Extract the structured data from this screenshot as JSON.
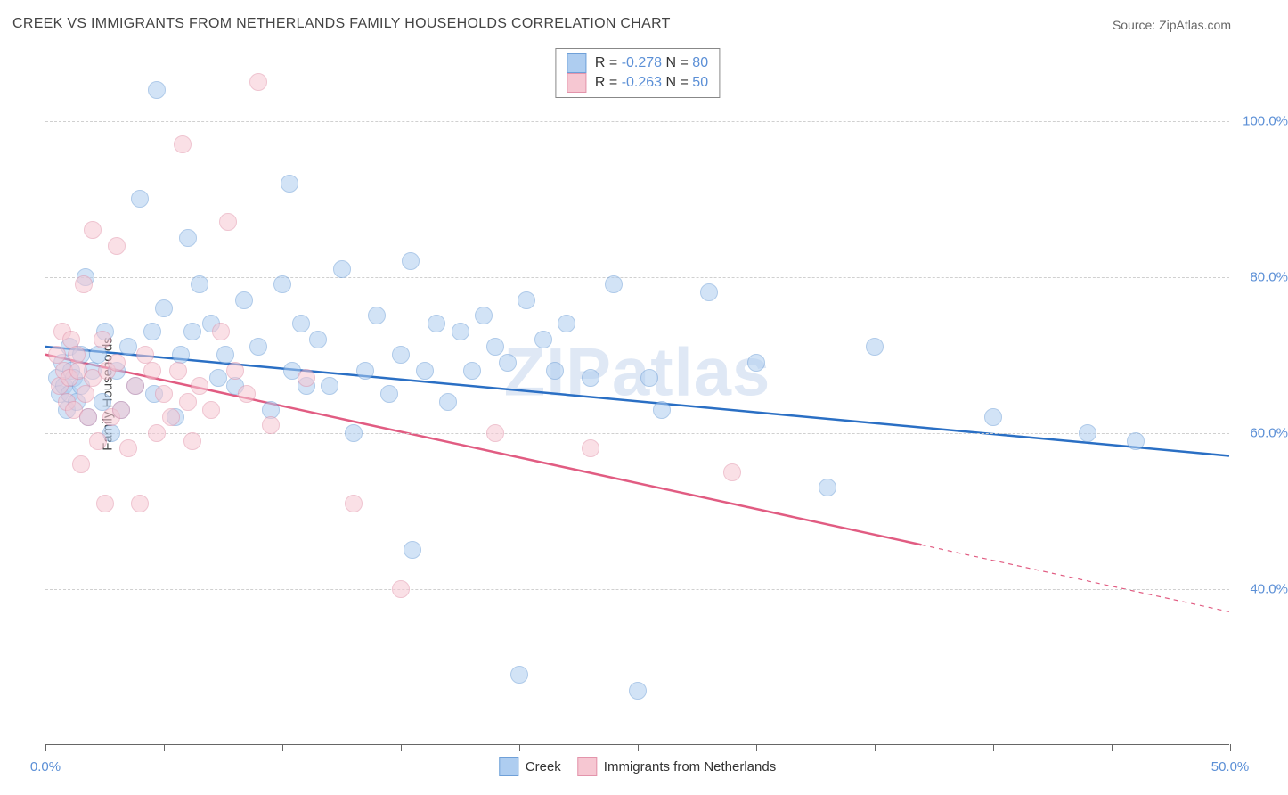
{
  "title": "CREEK VS IMMIGRANTS FROM NETHERLANDS FAMILY HOUSEHOLDS CORRELATION CHART",
  "source_label": "Source: ",
  "source_name": "ZipAtlas.com",
  "ylabel": "Family Households",
  "watermark": "ZIPatlas",
  "chart": {
    "type": "scatter",
    "xlim": [
      0,
      50
    ],
    "ylim": [
      20,
      110
    ],
    "x_ticks": [
      0,
      5,
      10,
      15,
      20,
      25,
      30,
      35,
      40,
      45,
      50
    ],
    "x_tick_labels": {
      "0": "0.0%",
      "50": "50.0%"
    },
    "y_gridlines": [
      40,
      60,
      80,
      100
    ],
    "y_tick_labels": [
      "40.0%",
      "60.0%",
      "80.0%",
      "100.0%"
    ],
    "grid_color": "#d0d0d0",
    "axis_color": "#666666",
    "tick_label_color": "#5b8fd6",
    "background_color": "#ffffff",
    "point_radius": 10,
    "point_opacity": 0.55
  },
  "series": [
    {
      "name": "Creek",
      "fill": "#aecdf0",
      "stroke": "#6fa0d8",
      "line_color": "#2a6fc4",
      "line_width": 2.5,
      "R": "-0.278",
      "N": "80",
      "trend": {
        "x1": 0,
        "y1": 71,
        "x2": 50,
        "y2": 57,
        "dash_after_x": null
      },
      "pts": [
        [
          0.5,
          67
        ],
        [
          0.6,
          65
        ],
        [
          0.7,
          69
        ],
        [
          0.8,
          66
        ],
        [
          0.9,
          63
        ],
        [
          1.0,
          71
        ],
        [
          1.0,
          65
        ],
        [
          1.1,
          68
        ],
        [
          1.2,
          67
        ],
        [
          1.3,
          64
        ],
        [
          1.5,
          70
        ],
        [
          1.5,
          66
        ],
        [
          1.7,
          80
        ],
        [
          1.8,
          62
        ],
        [
          2.0,
          68
        ],
        [
          2.2,
          70
        ],
        [
          2.4,
          64
        ],
        [
          2.5,
          73
        ],
        [
          2.8,
          60
        ],
        [
          3.0,
          68
        ],
        [
          3.2,
          63
        ],
        [
          3.5,
          71
        ],
        [
          3.8,
          66
        ],
        [
          4.0,
          90
        ],
        [
          4.5,
          73
        ],
        [
          4.6,
          65
        ],
        [
          5.0,
          76
        ],
        [
          5.5,
          62
        ],
        [
          5.7,
          70
        ],
        [
          6.0,
          85
        ],
        [
          6.2,
          73
        ],
        [
          6.5,
          79
        ],
        [
          7.0,
          74
        ],
        [
          7.3,
          67
        ],
        [
          7.6,
          70
        ],
        [
          8.0,
          66
        ],
        [
          8.4,
          77
        ],
        [
          9.0,
          71
        ],
        [
          9.5,
          63
        ],
        [
          10.0,
          79
        ],
        [
          10.3,
          92
        ],
        [
          10.4,
          68
        ],
        [
          10.8,
          74
        ],
        [
          11.0,
          66
        ],
        [
          11.5,
          72
        ],
        [
          12.0,
          66
        ],
        [
          12.5,
          81
        ],
        [
          13.0,
          60
        ],
        [
          13.5,
          68
        ],
        [
          14.0,
          75
        ],
        [
          14.5,
          65
        ],
        [
          15.0,
          70
        ],
        [
          15.4,
          82
        ],
        [
          15.5,
          45
        ],
        [
          16.0,
          68
        ],
        [
          16.5,
          74
        ],
        [
          17.0,
          64
        ],
        [
          17.5,
          73
        ],
        [
          18.0,
          68
        ],
        [
          18.5,
          75
        ],
        [
          19.0,
          71
        ],
        [
          19.5,
          69
        ],
        [
          20.0,
          29
        ],
        [
          20.3,
          77
        ],
        [
          21.0,
          72
        ],
        [
          21.5,
          68
        ],
        [
          22.0,
          74
        ],
        [
          23.0,
          67
        ],
        [
          24.0,
          79
        ],
        [
          25.0,
          27
        ],
        [
          25.5,
          67
        ],
        [
          26.0,
          63
        ],
        [
          28.0,
          78
        ],
        [
          30.0,
          69
        ],
        [
          33.0,
          53
        ],
        [
          35.0,
          71
        ],
        [
          40.0,
          62
        ],
        [
          44.0,
          60
        ],
        [
          46.0,
          59
        ],
        [
          4.7,
          104
        ]
      ]
    },
    {
      "name": "Immigrants from Netherlands",
      "fill": "#f6c7d2",
      "stroke": "#e394ab",
      "line_color": "#e15c82",
      "line_width": 2.5,
      "R": "-0.263",
      "N": "50",
      "trend": {
        "x1": 0,
        "y1": 70,
        "x2": 50,
        "y2": 37,
        "dash_after_x": 37
      },
      "pts": [
        [
          0.5,
          70
        ],
        [
          0.6,
          66
        ],
        [
          0.7,
          73
        ],
        [
          0.8,
          68
        ],
        [
          0.9,
          64
        ],
        [
          1.0,
          67
        ],
        [
          1.1,
          72
        ],
        [
          1.2,
          63
        ],
        [
          1.3,
          70
        ],
        [
          1.4,
          68
        ],
        [
          1.5,
          56
        ],
        [
          1.6,
          79
        ],
        [
          1.7,
          65
        ],
        [
          1.8,
          62
        ],
        [
          2.0,
          86
        ],
        [
          2.0,
          67
        ],
        [
          2.2,
          59
        ],
        [
          2.4,
          72
        ],
        [
          2.5,
          51
        ],
        [
          2.6,
          68
        ],
        [
          2.8,
          62
        ],
        [
          3.0,
          84
        ],
        [
          3.0,
          69
        ],
        [
          3.2,
          63
        ],
        [
          3.5,
          58
        ],
        [
          3.8,
          66
        ],
        [
          4.0,
          51
        ],
        [
          4.2,
          70
        ],
        [
          4.5,
          68
        ],
        [
          4.7,
          60
        ],
        [
          5.0,
          65
        ],
        [
          5.3,
          62
        ],
        [
          5.6,
          68
        ],
        [
          5.8,
          97
        ],
        [
          6.0,
          64
        ],
        [
          6.2,
          59
        ],
        [
          6.5,
          66
        ],
        [
          7.0,
          63
        ],
        [
          7.4,
          73
        ],
        [
          7.7,
          87
        ],
        [
          8.0,
          68
        ],
        [
          8.5,
          65
        ],
        [
          9.0,
          105
        ],
        [
          9.5,
          61
        ],
        [
          11.0,
          67
        ],
        [
          13.0,
          51
        ],
        [
          15.0,
          40
        ],
        [
          19.0,
          60
        ],
        [
          23.0,
          58
        ],
        [
          29.0,
          55
        ]
      ]
    }
  ],
  "legend_top": [
    {
      "swatch_fill": "#aecdf0",
      "swatch_stroke": "#6fa0d8",
      "r_label": "R = ",
      "r_val": "-0.278",
      "n_label": "   N = ",
      "n_val": "80"
    },
    {
      "swatch_fill": "#f6c7d2",
      "swatch_stroke": "#e394ab",
      "r_label": "R = ",
      "r_val": "-0.263",
      "n_label": "   N = ",
      "n_val": "50"
    }
  ],
  "legend_bottom": [
    {
      "swatch_fill": "#aecdf0",
      "swatch_stroke": "#6fa0d8",
      "label": "Creek"
    },
    {
      "swatch_fill": "#f6c7d2",
      "swatch_stroke": "#e394ab",
      "label": "Immigrants from Netherlands"
    }
  ]
}
